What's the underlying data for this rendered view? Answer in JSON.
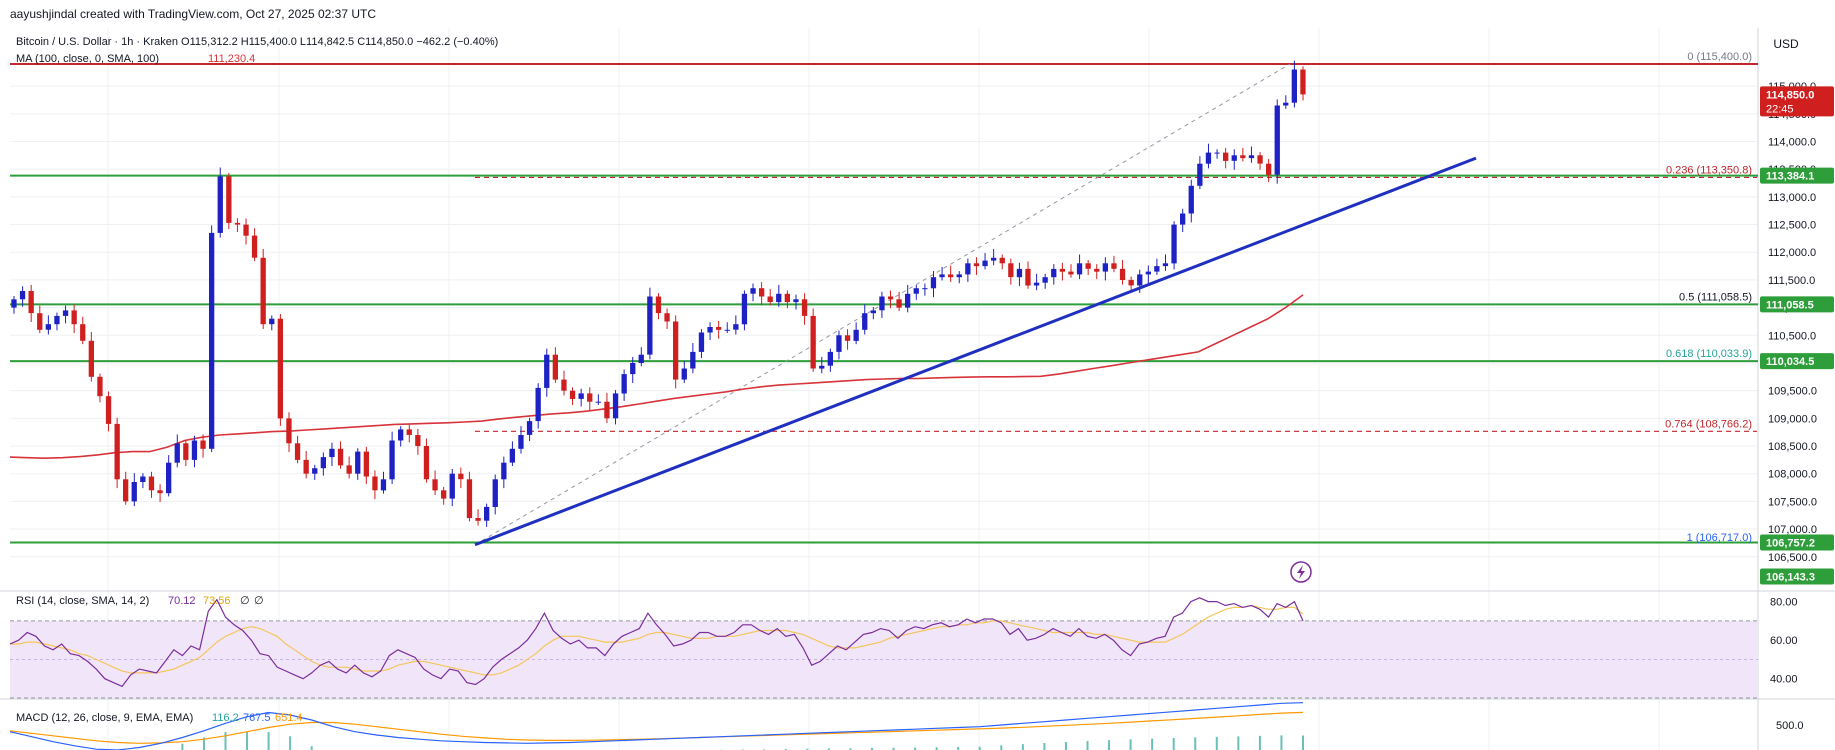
{
  "header": {
    "credit": "aayushjindal created with TradingView.com, Oct 27, 2025 02:37 UTC"
  },
  "colors": {
    "up": "#1e22c4",
    "down": "#d01f1f",
    "ma": "#d7333a",
    "trend": "#1f2fbf",
    "support": "#2e9e3a",
    "resistance": "#c2252b",
    "rsi": "#7b2d9c",
    "rsi_sma": "#f4c65c",
    "macd": "#2962ff",
    "signal": "#ff9800",
    "fib_green": "#26a69a"
  },
  "chart_data": {
    "type": "candlestick",
    "title": "Bitcoin / U.S. Dollar · 1h · Kraken",
    "ohlc_line": {
      "o": "O115,312.2",
      "h": "H115,400.0",
      "l": "L114,842.5",
      "c": "C114,850.0",
      "chg": "−462.2 (−0.40%)"
    },
    "currency": "USD",
    "ylim": [
      105900,
      116050
    ],
    "y_ticks": [
      "115,000.0",
      "114,500.0",
      "114,000.0",
      "113,500.0",
      "113,000.0",
      "112,500.0",
      "112,000.0",
      "111,500.0",
      "111,000.0",
      "110,500.0",
      "110,000.0",
      "109,500.0",
      "109,000.0",
      "108,500.0",
      "108,000.0",
      "107,500.0",
      "107,000.0",
      "106,500.0"
    ],
    "y_tick_values": [
      115000,
      114500,
      114000,
      113500,
      113000,
      112500,
      112000,
      111500,
      111000,
      110500,
      110000,
      109500,
      109000,
      108500,
      108000,
      107500,
      107000,
      106500
    ],
    "close_series": [
      111150,
      111300,
      110900,
      110600,
      110700,
      110850,
      110950,
      110700,
      110400,
      109750,
      109400,
      108900,
      107900,
      107500,
      107850,
      107950,
      107700,
      107650,
      108200,
      108550,
      108250,
      108600,
      108450,
      112350,
      113370,
      112530,
      112500,
      112300,
      111900,
      110700,
      110800,
      109000,
      108550,
      108250,
      108000,
      108100,
      108300,
      108450,
      108150,
      108000,
      108400,
      107950,
      107700,
      107900,
      108600,
      108800,
      108700,
      108500,
      107900,
      107700,
      107550,
      108000,
      107900,
      107200,
      107150,
      107400,
      107900,
      108200,
      108450,
      108700,
      108950,
      109550,
      110150,
      109700,
      109500,
      109350,
      109450,
      109300,
      109300,
      109000,
      109450,
      109800,
      110000,
      110150,
      111200,
      110900,
      110750,
      109700,
      109900,
      110200,
      110550,
      110650,
      110600,
      110600,
      110700,
      111250,
      111350,
      111200,
      111100,
      111250,
      111100,
      111150,
      110850,
      109900,
      109950,
      110200,
      110500,
      110400,
      110600,
      110900,
      110950,
      111200,
      111150,
      111000,
      111250,
      111350,
      111350,
      111550,
      111600,
      111550,
      111600,
      111800,
      111750,
      111850,
      111900,
      111800,
      111550,
      111700,
      111400,
      111450,
      111550,
      111700,
      111650,
      111600,
      111800,
      111700,
      111650,
      111800,
      111700,
      111500,
      111400,
      111600,
      111650,
      111750,
      111800,
      112500,
      112700,
      113200,
      113600,
      113800,
      113800,
      113650,
      113750,
      113700,
      113750,
      113600,
      113400,
      114650,
      114700,
      115300,
      114850
    ],
    "ma_label": "MA (100, close, 0, SMA, 100)",
    "ma_value": "111,230.4",
    "ma_series": [
      108300,
      108290,
      108280,
      108290,
      108310,
      108340,
      108380,
      108400,
      108400,
      108480,
      108600,
      108660,
      108700,
      108720,
      108740,
      108760,
      108770,
      108790,
      108810,
      108830,
      108850,
      108870,
      108890,
      108900,
      108910,
      108920,
      108935,
      108950,
      108990,
      109020,
      109050,
      109080,
      109100,
      109130,
      109170,
      109210,
      109260,
      109310,
      109360,
      109400,
      109440,
      109480,
      109530,
      109570,
      109600,
      109620,
      109640,
      109660,
      109680,
      109700,
      109710,
      109720,
      109720,
      109730,
      109740,
      109745,
      109750,
      109750,
      109755,
      109760,
      109800,
      109850,
      109900,
      109950,
      110000,
      110050,
      110100,
      110150,
      110200,
      110350,
      110500,
      110650,
      110800,
      111000,
      111230
    ],
    "fib_levels": [
      {
        "label": "0 (115,400.0)",
        "value": 115400,
        "color": "#787b86"
      },
      {
        "label": "0.236 (113,350.8)",
        "value": 113350.8,
        "color": "#c2252b"
      },
      {
        "label": "0.5 (111,058.5)",
        "value": 111058.5,
        "color": "#131722"
      },
      {
        "label": "0.618 (110,033.9)",
        "value": 110033.9,
        "color": "#26a69a"
      },
      {
        "label": "0.764 (108,766.2)",
        "value": 108766.2,
        "color": "#c2252b"
      },
      {
        "label": "1 (106,717.0)",
        "value": 106717,
        "color": "#2962ff"
      }
    ],
    "support_lines": [
      113384.1,
      111058.5,
      110034.5,
      106757.2
    ],
    "trendline": {
      "from": [
        106717,
        0.26
      ],
      "to": [
        113700,
        0.8
      ]
    },
    "price_tags": [
      {
        "text": "114,850.0",
        "sub": "22:45",
        "value": 114850,
        "bg": "#d01f1f"
      },
      {
        "text": "113,384.1",
        "value": 113384.1,
        "bg": "#2e9e3a"
      },
      {
        "text": "111,058.5",
        "value": 111058.5,
        "bg": "#2e9e3a"
      },
      {
        "text": "110,034.5",
        "value": 110034.5,
        "bg": "#2e9e3a"
      },
      {
        "text": "106,757.2",
        "value": 106757.2,
        "bg": "#2e9e3a"
      },
      {
        "text": "106,143.3",
        "value": 106143.3,
        "bg": "#2e9e3a"
      }
    ],
    "rsi": {
      "label": "RSI (14, close, SMA, 14, 2)",
      "value": "70.12",
      "sma_value": "73.56",
      "extras": [
        "∅",
        "∅"
      ],
      "ticks": [
        "80.00",
        "60.00",
        "40.00"
      ],
      "tick_values": [
        80,
        60,
        40
      ],
      "ylim": [
        30,
        85
      ],
      "band": [
        30,
        70
      ],
      "series": [
        58,
        60,
        64,
        62,
        57,
        55,
        58,
        53,
        52,
        49,
        45,
        40,
        38,
        36,
        42,
        45,
        44,
        43,
        49,
        55,
        52,
        57,
        55,
        75,
        81,
        72,
        68,
        65,
        60,
        53,
        52,
        46,
        44,
        42,
        40,
        43,
        47,
        49,
        45,
        43,
        47,
        43,
        41,
        44,
        52,
        55,
        53,
        51,
        45,
        42,
        40,
        45,
        44,
        38,
        37,
        40,
        46,
        50,
        53,
        56,
        60,
        66,
        74,
        65,
        61,
        58,
        60,
        56,
        56,
        52,
        58,
        62,
        64,
        66,
        74,
        68,
        63,
        57,
        58,
        60,
        64,
        64,
        62,
        62,
        64,
        68,
        68,
        65,
        63,
        66,
        62,
        63,
        56,
        47,
        49,
        53,
        57,
        55,
        59,
        63,
        64,
        66,
        65,
        61,
        65,
        67,
        66,
        68,
        69,
        67,
        68,
        71,
        69,
        71,
        71,
        69,
        63,
        66,
        60,
        61,
        63,
        66,
        64,
        62,
        66,
        62,
        61,
        63,
        60,
        55,
        52,
        58,
        59,
        61,
        62,
        72,
        74,
        80,
        82,
        80,
        80,
        78,
        79,
        77,
        78,
        76,
        72,
        79,
        77,
        80,
        70
      ],
      "sma_series": [
        58,
        58,
        59,
        59,
        58,
        57,
        56,
        55,
        53,
        52,
        50,
        48,
        46,
        44,
        43,
        43,
        43,
        43,
        44,
        45,
        47,
        49,
        51,
        55,
        59,
        62,
        64,
        66,
        67,
        66,
        64,
        62,
        58,
        55,
        52,
        49,
        47,
        46,
        46,
        46,
        45,
        44,
        44,
        44,
        45,
        47,
        48,
        49,
        49,
        48,
        47,
        46,
        45,
        44,
        43,
        42,
        42,
        43,
        45,
        47,
        50,
        53,
        57,
        60,
        62,
        62,
        62,
        61,
        60,
        59,
        59,
        59,
        60,
        61,
        63,
        64,
        64,
        63,
        62,
        61,
        61,
        61,
        62,
        62,
        62,
        63,
        64,
        65,
        65,
        65,
        65,
        64,
        63,
        61,
        59,
        57,
        56,
        56,
        56,
        57,
        58,
        59,
        61,
        62,
        63,
        64,
        65,
        66,
        67,
        67,
        68,
        68,
        69,
        69,
        70,
        70,
        69,
        68,
        67,
        66,
        65,
        64,
        64,
        64,
        64,
        64,
        63,
        63,
        62,
        61,
        60,
        59,
        59,
        59,
        59,
        61,
        63,
        66,
        69,
        72,
        74,
        76,
        77,
        77,
        78,
        77,
        76,
        76,
        77,
        77,
        73.56
      ]
    },
    "macd": {
      "label": "MACD (12, 26, close, 9, EMA, EMA)",
      "hist_value": "116.2",
      "macd_value": "767.5",
      "signal_value": "651.4",
      "ticks": [
        "500.0"
      ],
      "tick_values": [
        500
      ],
      "ylim": [
        200,
        800
      ],
      "macd_series": [
        420,
        360,
        300,
        250,
        210,
        200,
        230,
        280,
        350,
        430,
        520,
        600,
        650,
        620,
        560,
        480,
        420,
        380,
        350,
        330,
        310,
        300,
        290,
        285,
        280,
        285,
        290,
        300,
        310,
        320,
        330,
        340,
        350,
        360,
        370,
        380,
        390,
        400,
        410,
        420,
        430,
        440,
        450,
        460,
        470,
        480,
        500,
        520,
        540,
        560,
        580,
        600,
        620,
        640,
        660,
        680,
        700,
        720,
        740,
        760,
        767.5
      ],
      "signal_series": [
        430,
        400,
        370,
        340,
        310,
        290,
        280,
        285,
        300,
        330,
        370,
        420,
        470,
        510,
        530,
        530,
        510,
        480,
        450,
        420,
        390,
        365,
        345,
        330,
        320,
        315,
        315,
        318,
        322,
        328,
        335,
        342,
        350,
        358,
        366,
        374,
        382,
        390,
        398,
        406,
        414,
        422,
        430,
        438,
        446,
        454,
        463,
        473,
        484,
        496,
        508,
        521,
        535,
        549,
        564,
        579,
        595,
        611,
        627,
        643,
        651.4
      ]
    }
  }
}
